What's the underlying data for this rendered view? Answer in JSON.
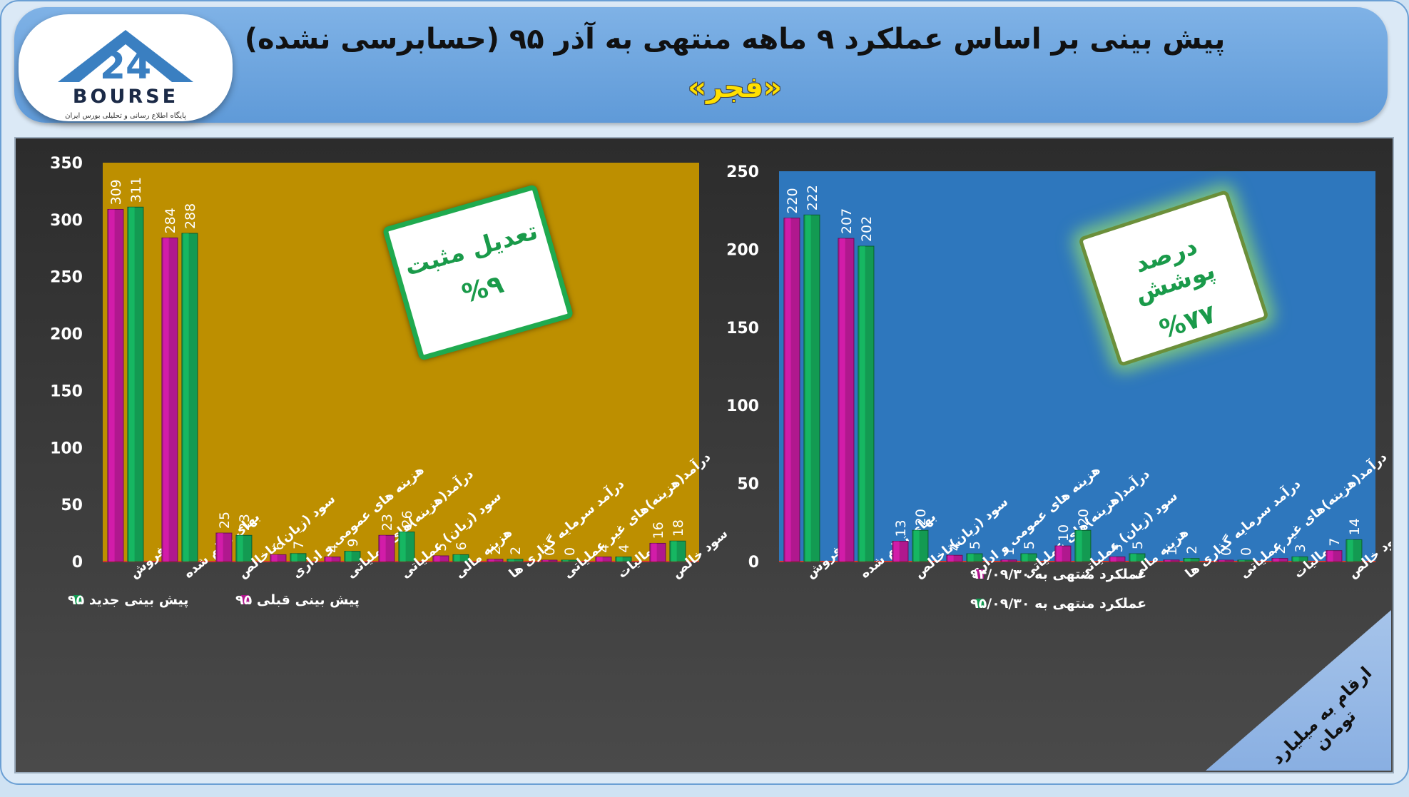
{
  "header": {
    "title": "پیش بینی بر اساس عملکرد ۹ ماهه منتهی به آذر ۹۵ (حسابرسی نشده)",
    "subtitle": "«فجر»",
    "logo_word": "BOURSE",
    "logo_sub": "پایگاه اطلاع رسانی و تحلیلی بورس ایران"
  },
  "colors": {
    "pink": "#b0188e",
    "green": "#139a52",
    "gold": "#bd8f00",
    "blue": "#2e77bd"
  },
  "units_note": "ارقام به میلیارد تومان",
  "callouts": {
    "left": {
      "line1": "تعدیل مثبت",
      "line2": "%۹"
    },
    "right": {
      "line1": "درصد پوشش",
      "line2": "%۷۷"
    }
  },
  "chart_data": [
    {
      "type": "bar",
      "background": "#bd8f00",
      "categories": [
        "فروش",
        "بهای تمام شده",
        "سود (زیان) ناخالص",
        "هزینه های عمومی و اداری",
        "درآمد(هزینه)های عملیاتی",
        "سود (زیان) عملیاتی",
        "هزینه مالی",
        "درآمد سرمایه گذاری ها",
        "درآمد(هزینه)های غیر عملیاتی",
        "مالیات",
        "سود خالص"
      ],
      "series": [
        {
          "name": "پیش بینی قبلی ۹۵",
          "color": "#b0188e",
          "values": [
            309,
            284,
            25,
            6,
            4,
            23,
            5,
            2,
            0,
            4,
            16
          ]
        },
        {
          "name": "پیش بینی جدید ۹۵",
          "color": "#139a52",
          "values": [
            311,
            288,
            23,
            7,
            9,
            26,
            6,
            2,
            0,
            4,
            18
          ]
        }
      ],
      "ylim": [
        0,
        350
      ],
      "yticks": [
        0,
        50,
        100,
        150,
        200,
        250,
        300,
        350
      ],
      "legend": "bottom"
    },
    {
      "type": "bar",
      "background": "#2e77bd",
      "categories": [
        "فروش",
        "بهای تمام شده",
        "سود (زیان)ناخالص",
        "هزینه های عمومی و اداری",
        "درآمد(هزینه)های عملیاتی",
        "سود (زیان) عملیاتی",
        "هزینه مالی",
        "درآمد سرمایه گذاری ها",
        "درآمد(هزینه)های غیر عملیاتی",
        "مالیات",
        "سود خالص"
      ],
      "series": [
        {
          "name": "عملکرد منتهی به ۹۴/۰۹/۳۰",
          "color": "#b0188e",
          "values": [
            220,
            207,
            13,
            4,
            1,
            10,
            3,
            1,
            0,
            2,
            7
          ]
        },
        {
          "name": "عملکرد منتهی به ۹۵/۰۹/۳۰",
          "color": "#139a52",
          "values": [
            222,
            202,
            20,
            5,
            5,
            20,
            5,
            2,
            0,
            3,
            14
          ]
        }
      ],
      "ylim": [
        0,
        250
      ],
      "yticks": [
        0,
        50,
        100,
        150,
        200,
        250
      ],
      "legend": "bottom-left"
    }
  ]
}
